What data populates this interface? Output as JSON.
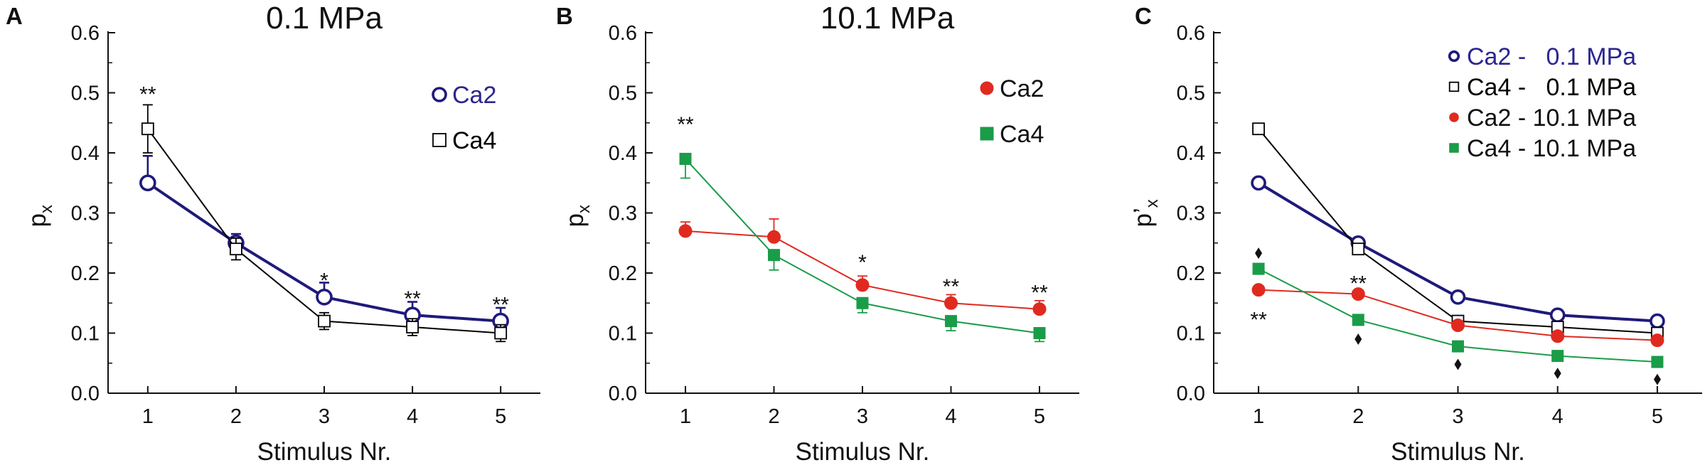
{
  "chart_data": [
    {
      "type": "line",
      "panel_label": "A",
      "title": "0.1 MPa",
      "xlabel": "Stimulus Nr.",
      "ylabel_main": "p",
      "ylabel_sub": "x",
      "ylabel_prime": "",
      "xlim": [
        0.55,
        5.45
      ],
      "ylim": [
        0.0,
        0.6
      ],
      "x_ticks": [
        1,
        2,
        3,
        4,
        5
      ],
      "x_tick_labels": [
        "1",
        "2",
        "3",
        "4",
        "5"
      ],
      "y_ticks": [
        0.0,
        0.1,
        0.2,
        0.3,
        0.4,
        0.5,
        0.6
      ],
      "y_tick_labels": [
        "0.0",
        "0.1",
        "0.2",
        "0.3",
        "0.4",
        "0.5",
        "0.6"
      ],
      "legend_position": "top-right",
      "series": [
        {
          "name": "Ca2",
          "color": "#1f1a7a",
          "label_color": "#2b2590",
          "marker": "circle-open",
          "line_width": 4,
          "marker_size": 10,
          "x": [
            1,
            2,
            3,
            4,
            5
          ],
          "values": [
            0.35,
            0.25,
            0.16,
            0.13,
            0.12
          ],
          "error": [
            0.045,
            0.015,
            0.024,
            0.022,
            0.022
          ],
          "error_dir": "up"
        },
        {
          "name": "Ca4",
          "color": "#000000",
          "label_color": "#000000",
          "marker": "square-open",
          "line_width": 2,
          "marker_size": 8,
          "x": [
            1,
            2,
            3,
            4,
            5
          ],
          "values": [
            0.44,
            0.24,
            0.12,
            0.11,
            0.1
          ],
          "error": [
            0.04,
            0.018,
            0.014,
            0.014,
            0.014
          ],
          "error_dir": "both"
        }
      ],
      "annotations": [
        {
          "x": 1,
          "y": 0.5,
          "text": "**"
        },
        {
          "x": 3,
          "y": 0.19,
          "text": "*"
        },
        {
          "x": 4,
          "y": 0.16,
          "text": "**"
        },
        {
          "x": 5,
          "y": 0.15,
          "text": "**"
        }
      ]
    },
    {
      "type": "line",
      "panel_label": "B",
      "title": "10.1 MPa",
      "xlabel": "Stimulus Nr.",
      "ylabel_main": "p",
      "ylabel_sub": "x",
      "ylabel_prime": "",
      "xlim": [
        0.55,
        5.45
      ],
      "ylim": [
        0.0,
        0.6
      ],
      "x_ticks": [
        1,
        2,
        3,
        4,
        5
      ],
      "x_tick_labels": [
        "1",
        "2",
        "3",
        "4",
        "5"
      ],
      "y_ticks": [
        0.0,
        0.1,
        0.2,
        0.3,
        0.4,
        0.5,
        0.6
      ],
      "y_tick_labels": [
        "0.0",
        "0.1",
        "0.2",
        "0.3",
        "0.4",
        "0.5",
        "0.6"
      ],
      "legend_position": "top-right",
      "series": [
        {
          "name": "Ca2",
          "color": "#e02a20",
          "label_color": "#111111",
          "marker": "circle-filled",
          "line_width": 2,
          "marker_size": 9,
          "x": [
            1,
            2,
            3,
            4,
            5
          ],
          "values": [
            0.27,
            0.26,
            0.18,
            0.15,
            0.14
          ],
          "error": [
            0.015,
            0.03,
            0.015,
            0.014,
            0.014
          ],
          "error_dir": "up"
        },
        {
          "name": "Ca4",
          "color": "#1a9c48",
          "label_color": "#111111",
          "marker": "square-filled",
          "line_width": 2,
          "marker_size": 8,
          "x": [
            1,
            2,
            3,
            4,
            5
          ],
          "values": [
            0.39,
            0.23,
            0.15,
            0.12,
            0.1
          ],
          "error": [
            0.032,
            0.025,
            0.016,
            0.016,
            0.014
          ],
          "error_dir": "down"
        }
      ],
      "annotations": [
        {
          "x": 1,
          "y": 0.45,
          "text": "**"
        },
        {
          "x": 3,
          "y": 0.22,
          "text": "*"
        },
        {
          "x": 4,
          "y": 0.18,
          "text": "**"
        },
        {
          "x": 5,
          "y": 0.17,
          "text": "**"
        }
      ]
    },
    {
      "type": "line",
      "panel_label": "C",
      "title": "",
      "xlabel": "Stimulus Nr.",
      "ylabel_main": "p",
      "ylabel_sub": "x",
      "ylabel_prime": "’",
      "xlim": [
        0.55,
        5.45
      ],
      "ylim": [
        0.0,
        0.6
      ],
      "x_ticks": [
        1,
        2,
        3,
        4,
        5
      ],
      "x_tick_labels": [
        "1",
        "2",
        "3",
        "4",
        "5"
      ],
      "y_ticks": [
        0.0,
        0.1,
        0.2,
        0.3,
        0.4,
        0.5,
        0.6
      ],
      "y_tick_labels": [
        "0.0",
        "0.1",
        "0.2",
        "0.3",
        "0.4",
        "0.5",
        "0.6"
      ],
      "legend_position": "top-right",
      "series": [
        {
          "name": "Ca2 -   0.1 MPa",
          "color": "#1f1a7a",
          "label_color": "#2b2590",
          "marker": "circle-open",
          "line_width": 4,
          "marker_size": 9,
          "x": [
            1,
            2,
            3,
            4,
            5
          ],
          "values": [
            0.35,
            0.25,
            0.16,
            0.13,
            0.12
          ]
        },
        {
          "name": "Ca4 -   0.1 MPa",
          "color": "#000000",
          "label_color": "#000000",
          "marker": "square-open",
          "line_width": 2,
          "marker_size": 8,
          "x": [
            1,
            2,
            3,
            4,
            5
          ],
          "values": [
            0.44,
            0.24,
            0.12,
            0.11,
            0.1
          ]
        },
        {
          "name": "Ca2 - 10.1 MPa",
          "color": "#e02a20",
          "label_color": "#111111",
          "marker": "circle-filled",
          "line_width": 2,
          "marker_size": 9,
          "x": [
            1,
            2,
            3,
            4,
            5
          ],
          "values": [
            0.172,
            0.165,
            0.113,
            0.095,
            0.088
          ]
        },
        {
          "name": "Ca4 - 10.1 MPa",
          "color": "#1a9c48",
          "label_color": "#111111",
          "marker": "square-filled",
          "line_width": 2,
          "marker_size": 8,
          "x": [
            1,
            2,
            3,
            4,
            5
          ],
          "values": [
            0.207,
            0.122,
            0.078,
            0.062,
            0.052
          ]
        }
      ],
      "annotations": [
        {
          "x": 1,
          "y": 0.125,
          "text": "**"
        },
        {
          "x": 2,
          "y": 0.185,
          "text": "**"
        }
      ],
      "diamond_markers": [
        {
          "x": 1,
          "y": 0.233
        },
        {
          "x": 2,
          "y": 0.09
        },
        {
          "x": 3,
          "y": 0.048
        },
        {
          "x": 4,
          "y": 0.033
        },
        {
          "x": 5,
          "y": 0.023
        }
      ]
    }
  ]
}
